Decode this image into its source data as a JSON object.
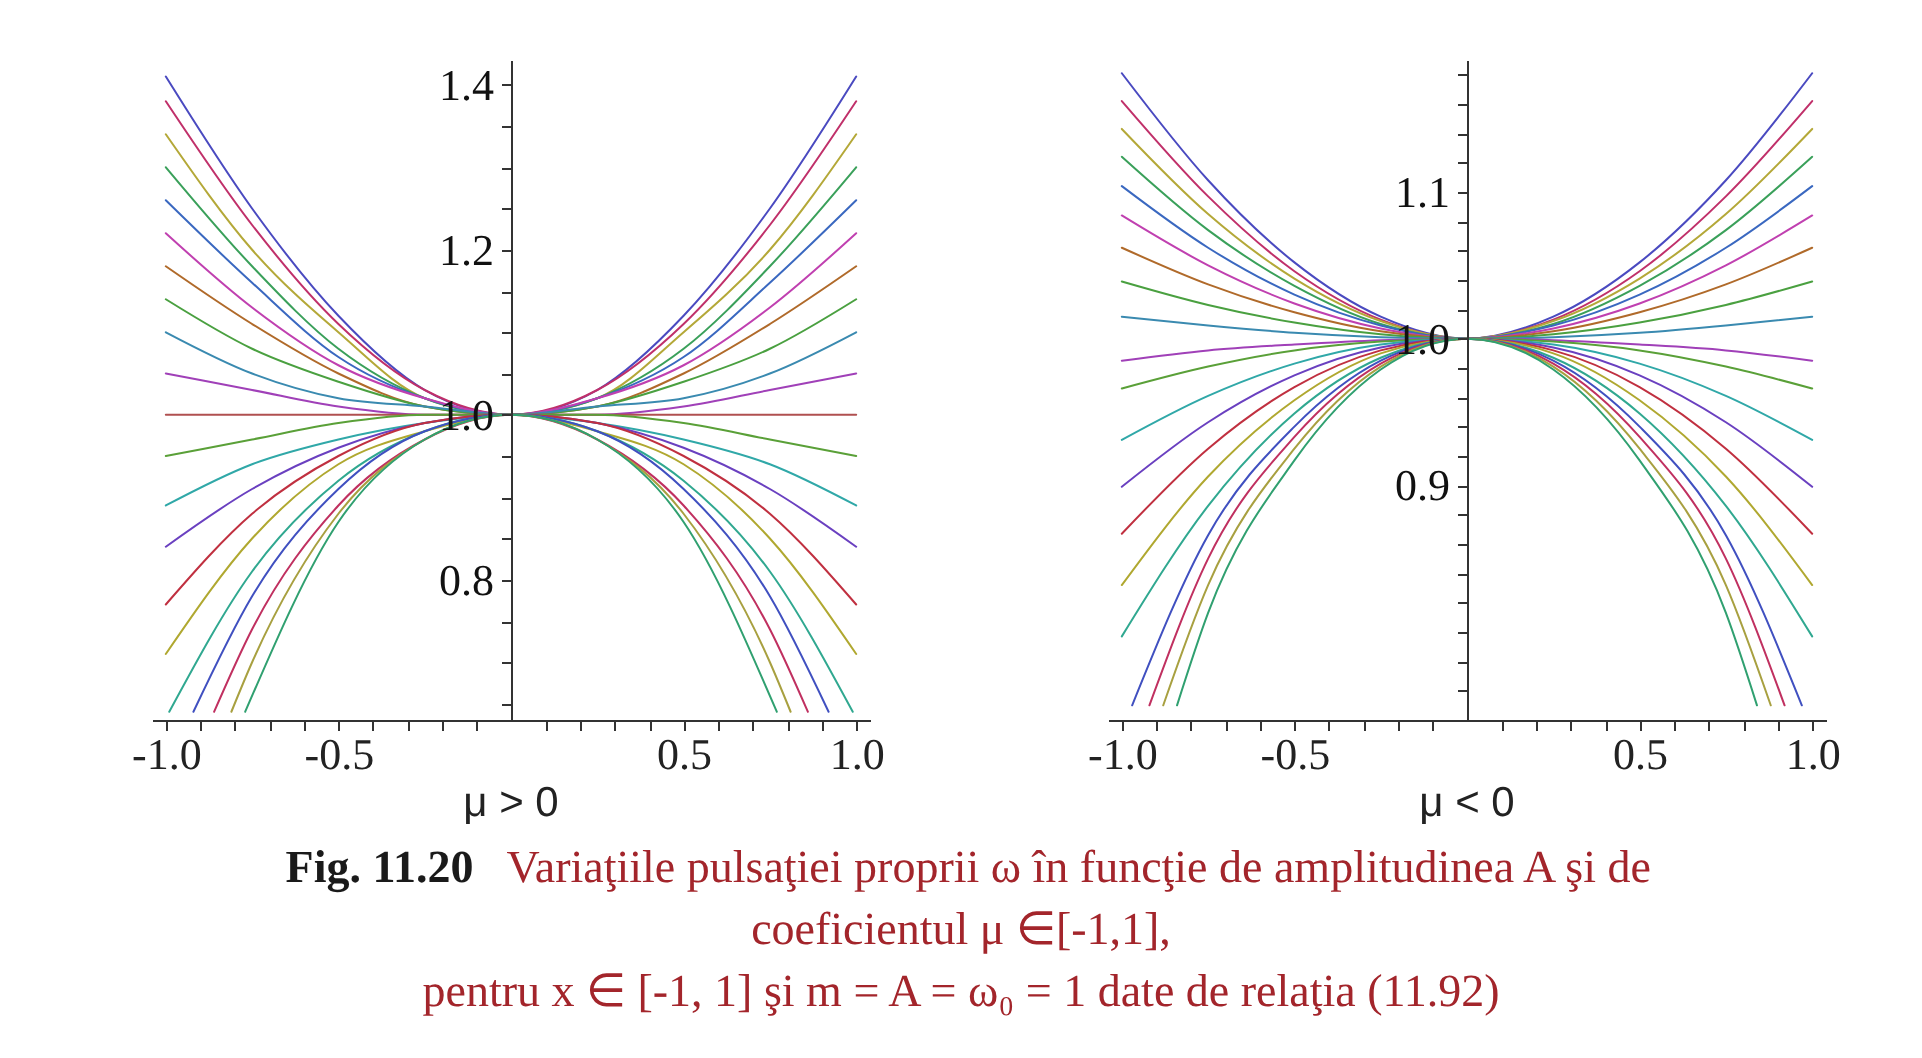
{
  "chart_data": [
    {
      "type": "line",
      "title": "μ > 0",
      "xlim": [
        -1.04,
        1.04
      ],
      "ylim": [
        0.63,
        1.43
      ],
      "xticks": [
        {
          "value": -1,
          "label": "-1.0"
        },
        {
          "value": -0.9,
          "label": null
        },
        {
          "value": -0.8,
          "label": null
        },
        {
          "value": -0.7,
          "label": null
        },
        {
          "value": -0.6,
          "label": null
        },
        {
          "value": -0.5,
          "label": "-0.5"
        },
        {
          "value": -0.4,
          "label": null
        },
        {
          "value": -0.3,
          "label": null
        },
        {
          "value": -0.2,
          "label": null
        },
        {
          "value": -0.1,
          "label": null
        },
        {
          "value": 0.1,
          "label": null
        },
        {
          "value": 0.2,
          "label": null
        },
        {
          "value": 0.3,
          "label": null
        },
        {
          "value": 0.4,
          "label": null
        },
        {
          "value": 0.5,
          "label": "0.5"
        },
        {
          "value": 0.6,
          "label": null
        },
        {
          "value": 0.7,
          "label": null
        },
        {
          "value": 0.8,
          "label": null
        },
        {
          "value": 0.9,
          "label": null
        },
        {
          "value": 1,
          "label": "1.0"
        }
      ],
      "yticks": [
        {
          "value": 0.65,
          "label": null
        },
        {
          "value": 0.7,
          "label": null
        },
        {
          "value": 0.75,
          "label": null
        },
        {
          "value": 0.8,
          "label": "0.8"
        },
        {
          "value": 0.85,
          "label": null
        },
        {
          "value": 0.9,
          "label": null
        },
        {
          "value": 0.95,
          "label": null
        },
        {
          "value": 1,
          "label": "1.0"
        },
        {
          "value": 1.05,
          "label": null
        },
        {
          "value": 1.1,
          "label": null
        },
        {
          "value": 1.15,
          "label": null
        },
        {
          "value": 1.2,
          "label": "1.2"
        },
        {
          "value": 1.25,
          "label": null
        },
        {
          "value": 1.3,
          "label": null
        },
        {
          "value": 1.35,
          "label": null
        },
        {
          "value": 1.4,
          "label": "1.4"
        }
      ],
      "x": [
        -1,
        -0.75,
        -0.5,
        -0.25,
        0,
        0.25,
        0.5,
        0.75,
        1
      ],
      "series": [
        {
          "color": "#4a4ac0",
          "values": [
            1.41,
            1.25,
            1.12,
            1.03,
            1,
            1.03,
            1.12,
            1.25,
            1.41
          ]
        },
        {
          "color": "#c0306a",
          "values": [
            1.38,
            1.23,
            1.11,
            1.03,
            1,
            1.03,
            1.11,
            1.23,
            1.38
          ]
        },
        {
          "color": "#b4a838",
          "values": [
            1.34,
            1.2,
            1.1,
            1.02,
            1,
            1.02,
            1.1,
            1.2,
            1.34
          ]
        },
        {
          "color": "#3aa05a",
          "values": [
            1.3,
            1.18,
            1.08,
            1.02,
            1,
            1.02,
            1.08,
            1.18,
            1.3
          ]
        },
        {
          "color": "#3a68c0",
          "values": [
            1.26,
            1.16,
            1.07,
            1.02,
            1,
            1.02,
            1.07,
            1.16,
            1.26
          ]
        },
        {
          "color": "#c040b0",
          "values": [
            1.22,
            1.13,
            1.06,
            1.02,
            1,
            1.02,
            1.06,
            1.13,
            1.22
          ]
        },
        {
          "color": "#b06a2a",
          "values": [
            1.18,
            1.11,
            1.05,
            1.01,
            1,
            1.01,
            1.05,
            1.11,
            1.18
          ]
        },
        {
          "color": "#4aa040",
          "values": [
            1.14,
            1.08,
            1.04,
            1.01,
            1,
            1.01,
            1.04,
            1.08,
            1.14
          ]
        },
        {
          "color": "#3a8ab0",
          "values": [
            1.1,
            1.05,
            1.02,
            1.01,
            1,
            1.01,
            1.02,
            1.05,
            1.1
          ]
        },
        {
          "color": "#a040b8",
          "values": [
            1.05,
            1.03,
            1.01,
            1,
            1,
            1,
            1.01,
            1.03,
            1.05
          ]
        },
        {
          "color": "#b05050",
          "values": [
            1,
            1,
            1,
            1,
            1,
            1,
            1,
            1,
            1
          ]
        },
        {
          "color": "#5aa038",
          "values": [
            0.95,
            0.97,
            0.99,
            1,
            1,
            1,
            0.99,
            0.97,
            0.95
          ]
        },
        {
          "color": "#30a8a8",
          "values": [
            0.89,
            0.94,
            0.97,
            0.99,
            1,
            0.99,
            0.97,
            0.94,
            0.89
          ]
        },
        {
          "color": "#6a40c0",
          "values": [
            0.84,
            0.91,
            0.96,
            0.99,
            1,
            0.99,
            0.96,
            0.91,
            0.84
          ]
        },
        {
          "color": "#c03040",
          "values": [
            0.77,
            0.88,
            0.95,
            0.99,
            1,
            0.99,
            0.95,
            0.88,
            0.77
          ]
        },
        {
          "color": "#b0a830",
          "values": [
            0.71,
            0.85,
            0.94,
            0.98,
            1,
            0.98,
            0.94,
            0.85,
            0.71
          ]
        },
        {
          "color": "#30a890",
          "x": [
            -0.99,
            -0.75,
            -0.5,
            -0.25,
            0,
            0.25,
            0.5,
            0.75,
            0.99
          ],
          "values": [
            0.64,
            0.81,
            0.92,
            0.98,
            1,
            0.98,
            0.92,
            0.81,
            0.64
          ]
        },
        {
          "color": "#4050c0",
          "x": [
            -0.92,
            -0.75,
            -0.5,
            -0.25,
            0,
            0.25,
            0.5,
            0.75,
            0.92
          ],
          "values": [
            0.64,
            0.78,
            0.91,
            0.98,
            1,
            0.98,
            0.91,
            0.78,
            0.64
          ]
        },
        {
          "color": "#c03060",
          "x": [
            -0.86,
            -0.75,
            -0.5,
            -0.25,
            0,
            0.25,
            0.5,
            0.75,
            0.86
          ],
          "values": [
            0.64,
            0.74,
            0.89,
            0.97,
            1,
            0.97,
            0.89,
            0.74,
            0.64
          ]
        },
        {
          "color": "#a8a040",
          "x": [
            -0.81,
            -0.75,
            -0.5,
            -0.25,
            0,
            0.25,
            0.5,
            0.75,
            0.81
          ],
          "values": [
            0.64,
            0.7,
            0.88,
            0.97,
            1,
            0.97,
            0.88,
            0.7,
            0.64
          ]
        },
        {
          "color": "#30a070",
          "x": [
            -0.77,
            -0.5,
            -0.25,
            0,
            0.25,
            0.5,
            0.77
          ],
          "values": [
            0.64,
            0.87,
            0.97,
            1,
            0.97,
            0.87,
            0.64
          ]
        }
      ]
    },
    {
      "type": "line",
      "title": "μ < 0",
      "xlim": [
        -1.04,
        1.04
      ],
      "ylim": [
        0.74,
        1.19
      ],
      "xticks": [
        {
          "value": -1,
          "label": "-1.0"
        },
        {
          "value": -0.9,
          "label": null
        },
        {
          "value": -0.8,
          "label": null
        },
        {
          "value": -0.7,
          "label": null
        },
        {
          "value": -0.6,
          "label": null
        },
        {
          "value": -0.5,
          "label": "-0.5"
        },
        {
          "value": -0.4,
          "label": null
        },
        {
          "value": -0.3,
          "label": null
        },
        {
          "value": -0.2,
          "label": null
        },
        {
          "value": -0.1,
          "label": null
        },
        {
          "value": 0.1,
          "label": null
        },
        {
          "value": 0.2,
          "label": null
        },
        {
          "value": 0.3,
          "label": null
        },
        {
          "value": 0.4,
          "label": null
        },
        {
          "value": 0.5,
          "label": "0.5"
        },
        {
          "value": 0.6,
          "label": null
        },
        {
          "value": 0.7,
          "label": null
        },
        {
          "value": 0.8,
          "label": null
        },
        {
          "value": 0.9,
          "label": null
        },
        {
          "value": 1,
          "label": "1.0"
        }
      ],
      "yticks": [
        {
          "value": 0.76,
          "label": null
        },
        {
          "value": 0.78,
          "label": null
        },
        {
          "value": 0.8,
          "label": null
        },
        {
          "value": 0.82,
          "label": null
        },
        {
          "value": 0.84,
          "label": null
        },
        {
          "value": 0.86,
          "label": null
        },
        {
          "value": 0.88,
          "label": null
        },
        {
          "value": 0.9,
          "label": "0.9"
        },
        {
          "value": 0.92,
          "label": null
        },
        {
          "value": 0.94,
          "label": null
        },
        {
          "value": 0.96,
          "label": null
        },
        {
          "value": 0.98,
          "label": null
        },
        {
          "value": 1,
          "label": "1.0"
        },
        {
          "value": 1.02,
          "label": null
        },
        {
          "value": 1.04,
          "label": null
        },
        {
          "value": 1.06,
          "label": null
        },
        {
          "value": 1.08,
          "label": null
        },
        {
          "value": 1.1,
          "label": "1.1"
        },
        {
          "value": 1.12,
          "label": null
        },
        {
          "value": 1.14,
          "label": null
        },
        {
          "value": 1.16,
          "label": null
        },
        {
          "value": 1.18,
          "label": null
        }
      ],
      "x": [
        -1,
        -0.75,
        -0.5,
        -0.25,
        0,
        0.25,
        0.5,
        0.75,
        1
      ],
      "series": [
        {
          "color": "#4a4ac0",
          "values": [
            1.181,
            1.108,
            1.052,
            1.015,
            1,
            1.015,
            1.052,
            1.108,
            1.181
          ]
        },
        {
          "color": "#c0306a",
          "values": [
            1.162,
            1.097,
            1.046,
            1.013,
            1,
            1.013,
            1.046,
            1.097,
            1.162
          ]
        },
        {
          "color": "#b4a838",
          "values": [
            1.143,
            1.085,
            1.041,
            1.012,
            1,
            1.012,
            1.041,
            1.085,
            1.143
          ]
        },
        {
          "color": "#3aa05a",
          "values": [
            1.124,
            1.074,
            1.036,
            1.01,
            1,
            1.01,
            1.036,
            1.074,
            1.124
          ]
        },
        {
          "color": "#3a68c0",
          "values": [
            1.104,
            1.062,
            1.03,
            1.009,
            1,
            1.009,
            1.03,
            1.062,
            1.104
          ]
        },
        {
          "color": "#c040b0",
          "values": [
            1.084,
            1.05,
            1.024,
            1.007,
            1,
            1.007,
            1.024,
            1.05,
            1.084
          ]
        },
        {
          "color": "#b06a2a",
          "values": [
            1.062,
            1.037,
            1.018,
            1.005,
            1,
            1.005,
            1.018,
            1.037,
            1.062
          ]
        },
        {
          "color": "#4aa040",
          "values": [
            1.039,
            1.023,
            1.011,
            1.003,
            1,
            1.003,
            1.011,
            1.023,
            1.039
          ]
        },
        {
          "color": "#3a8ab0",
          "values": [
            1.015,
            1.009,
            1.004,
            1.001,
            1,
            1.001,
            1.004,
            1.009,
            1.015
          ]
        },
        {
          "color": "#a040b8",
          "values": [
            0.985,
            0.992,
            0.996,
            0.999,
            1,
            0.999,
            0.996,
            0.992,
            0.985
          ]
        },
        {
          "color": "#5aa038",
          "values": [
            0.966,
            0.981,
            0.992,
            0.998,
            1,
            0.998,
            0.992,
            0.981,
            0.966
          ]
        },
        {
          "color": "#30a8a8",
          "values": [
            0.931,
            0.961,
            0.983,
            0.996,
            1,
            0.996,
            0.983,
            0.961,
            0.931
          ]
        },
        {
          "color": "#6a40c0",
          "values": [
            0.899,
            0.943,
            0.975,
            0.994,
            1,
            0.994,
            0.975,
            0.943,
            0.899
          ]
        },
        {
          "color": "#c03040",
          "values": [
            0.867,
            0.925,
            0.967,
            0.992,
            1,
            0.992,
            0.967,
            0.925,
            0.867
          ]
        },
        {
          "color": "#b0a830",
          "values": [
            0.832,
            0.906,
            0.958,
            0.99,
            1,
            0.99,
            0.958,
            0.906,
            0.832
          ]
        },
        {
          "color": "#30a890",
          "values": [
            0.797,
            0.886,
            0.949,
            0.987,
            1,
            0.987,
            0.949,
            0.886,
            0.797
          ]
        },
        {
          "color": "#4050c0",
          "x": [
            -0.97,
            -0.75,
            -0.5,
            -0.25,
            0,
            0.25,
            0.5,
            0.75,
            0.97
          ],
          "values": [
            0.75,
            0.866,
            0.94,
            0.985,
            1,
            0.985,
            0.94,
            0.866,
            0.75
          ]
        },
        {
          "color": "#c03060",
          "x": [
            -0.92,
            -0.75,
            -0.5,
            -0.25,
            0,
            0.25,
            0.5,
            0.75,
            0.92
          ],
          "values": [
            0.75,
            0.85,
            0.933,
            0.983,
            1,
            0.983,
            0.933,
            0.85,
            0.75
          ]
        },
        {
          "color": "#a8a040",
          "x": [
            -0.88,
            -0.75,
            -0.5,
            -0.25,
            0,
            0.25,
            0.5,
            0.75,
            0.88
          ],
          "values": [
            0.75,
            0.832,
            0.925,
            0.981,
            1,
            0.981,
            0.925,
            0.832,
            0.75
          ]
        },
        {
          "color": "#30a070",
          "x": [
            -0.84,
            -0.75,
            -0.5,
            -0.25,
            0,
            0.25,
            0.5,
            0.75,
            0.84
          ],
          "values": [
            0.75,
            0.813,
            0.917,
            0.979,
            1,
            0.979,
            0.917,
            0.813,
            0.75
          ]
        }
      ]
    },
    {
      "type": "other",
      "title": "Fig. 11.20",
      "annotations": [
        "Variaţiile pulsaţiei proprii ω în funcţie de amplitudinea A şi de",
        "coeficientul μ ∈[-1,1],",
        "pentru x ∈ [-1, 1]  şi  m = A = ω₀ = 1 date de relaţia (11.92)"
      ]
    }
  ]
}
